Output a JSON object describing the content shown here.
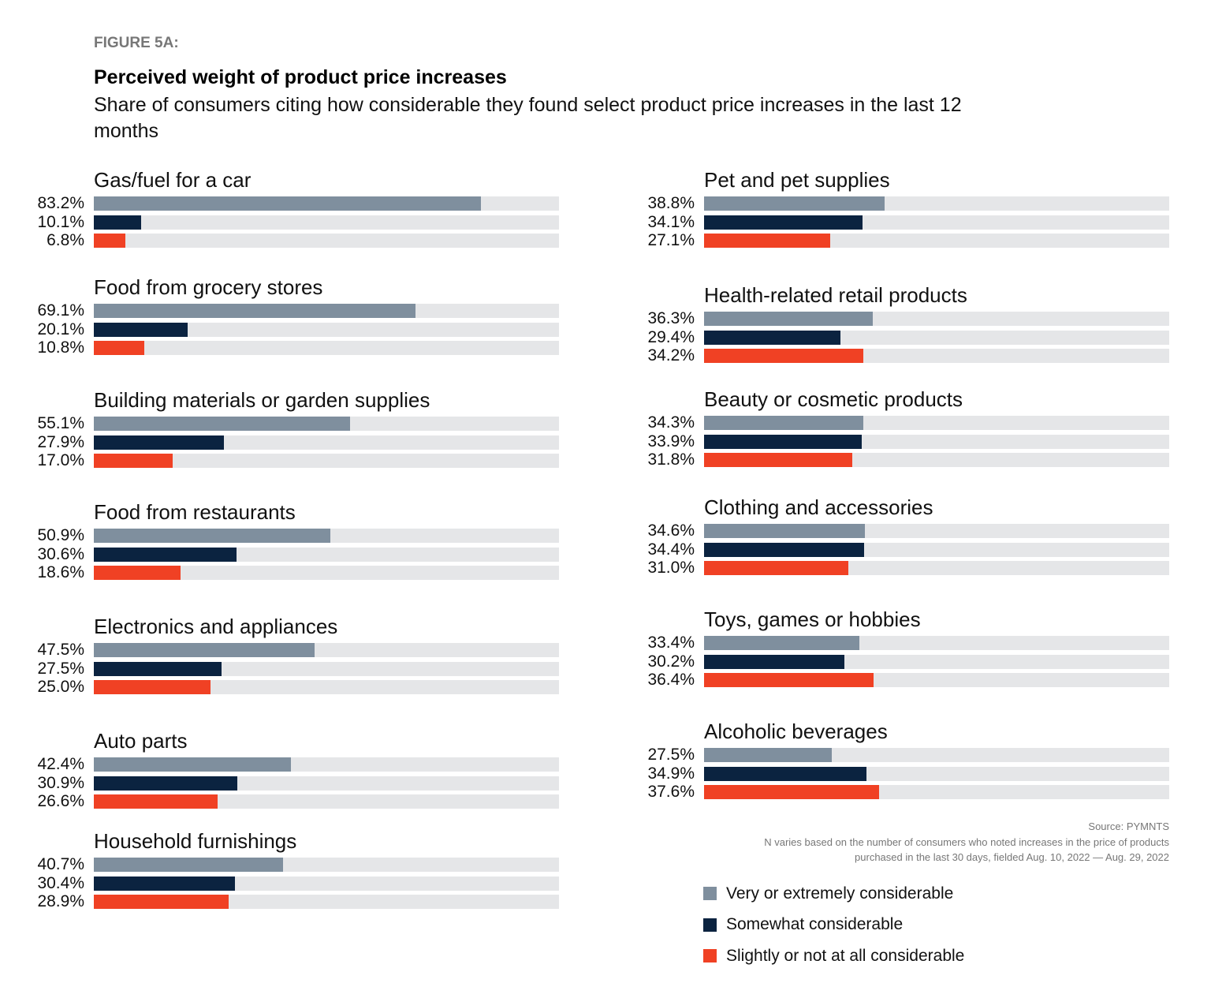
{
  "figure_label": "FIGURE 5A:",
  "chart_data": {
    "type": "bar",
    "orientation": "horizontal",
    "title": "Perceived weight of product price increases",
    "subtitle": "Share of consumers citing how considerable they found select product price increases in the last 12 months",
    "xlim": [
      0,
      100
    ],
    "unit": "%",
    "series": [
      {
        "name": "Very or extremely considerable",
        "color": "#7f8f9e"
      },
      {
        "name": "Somewhat considerable",
        "color": "#0b2340"
      },
      {
        "name": "Slightly or not at all considerable",
        "color": "#f04124"
      }
    ],
    "categories": [
      {
        "name": "Gas/fuel for a car",
        "values": [
          83.2,
          10.1,
          6.8
        ]
      },
      {
        "name": "Food from grocery stores",
        "values": [
          69.1,
          20.1,
          10.8
        ]
      },
      {
        "name": "Building materials or garden supplies",
        "values": [
          55.1,
          27.9,
          17.0
        ]
      },
      {
        "name": "Food from restaurants",
        "values": [
          50.9,
          30.6,
          18.6
        ]
      },
      {
        "name": "Electronics and appliances",
        "values": [
          47.5,
          27.5,
          25.0
        ]
      },
      {
        "name": "Auto parts",
        "values": [
          42.4,
          30.9,
          26.6
        ]
      },
      {
        "name": "Household furnishings",
        "values": [
          40.7,
          30.4,
          28.9
        ]
      },
      {
        "name": "Pet and pet supplies",
        "values": [
          38.8,
          34.1,
          27.1
        ]
      },
      {
        "name": "Health-related retail products",
        "values": [
          36.3,
          29.4,
          34.2
        ]
      },
      {
        "name": "Beauty or cosmetic products",
        "values": [
          34.3,
          33.9,
          31.8
        ]
      },
      {
        "name": "Clothing and accessories",
        "values": [
          34.6,
          34.4,
          31.0
        ]
      },
      {
        "name": "Toys, games or hobbies",
        "values": [
          33.4,
          30.2,
          36.4
        ]
      },
      {
        "name": "Alcoholic beverages",
        "values": [
          27.5,
          34.9,
          37.6
        ]
      }
    ],
    "legend_position": "bottom-right",
    "track_color": "#e5e6e8"
  },
  "source": "Source: PYMNTS",
  "note_line1": "N varies based on the number of consumers who noted increases in the price of products",
  "note_line2": "purchased in the last 30 days, fielded Aug. 10, 2022 — Aug. 29, 2022"
}
